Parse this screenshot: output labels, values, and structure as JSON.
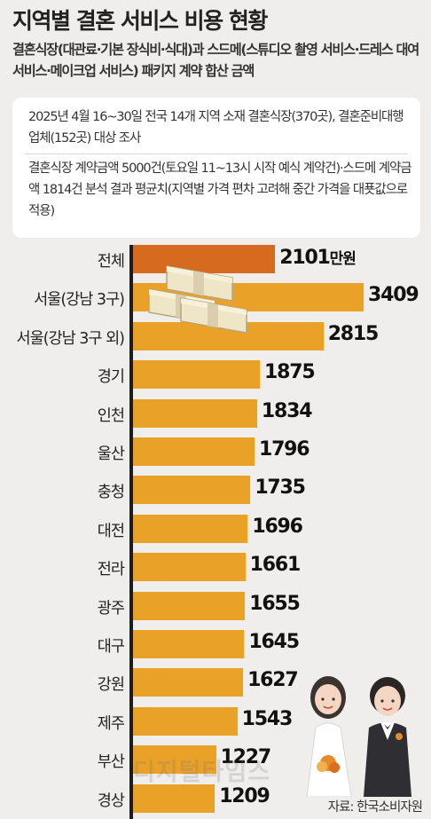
{
  "header": {
    "title": "지역별 결혼 서비스 비용 현황",
    "subtitle": "결혼식장(대관료·기본 장식비·식대)과 스드메(스튜디오 촬영 서비스·드레스 대여 서비스·메이크업 서비스) 패키지 계약 합산 금액"
  },
  "notes": {
    "survey": "2025년 4월 16~30일 전국 14개 지역 소재 결혼식장(370곳), 결혼준비대행업체(152곳) 대상 조사",
    "method": "결혼식장 계약금액 5000건(토요일 11~13시 시작 예식 계약건)·스드메 계약금액 1814건 분석 결과 평균치(지역별 가격 편차 고려해 중간 가격을 대푯값으로 적용)"
  },
  "colors": {
    "bar": "#e9a128",
    "bar_highlight": "#d66a1e",
    "background": "#efeeec"
  },
  "chart_data": {
    "type": "bar",
    "orientation": "horizontal",
    "unit_label": "만원",
    "categories": [
      "전체",
      "서울(강남 3구)",
      "서울(강남 3구 외)",
      "경기",
      "인천",
      "울산",
      "충청",
      "대전",
      "전라",
      "광주",
      "대구",
      "강원",
      "제주",
      "부산",
      "경상"
    ],
    "values": [
      2101,
      3409,
      2815,
      1875,
      1834,
      1796,
      1735,
      1696,
      1661,
      1655,
      1645,
      1627,
      1543,
      1227,
      1209
    ],
    "value_labels": [
      "2101",
      "3409",
      "2815",
      "1875",
      "1834",
      "1796",
      "1735",
      "1696",
      "1661",
      "1655",
      "1645",
      "1627",
      "1543",
      "1227",
      "1209"
    ],
    "highlight_index": 0,
    "xlim": [
      0,
      3409
    ],
    "grid": false,
    "legend": "none"
  },
  "footer": {
    "source": "자료: 한국소비자원",
    "watermark": "디지털타임스"
  }
}
